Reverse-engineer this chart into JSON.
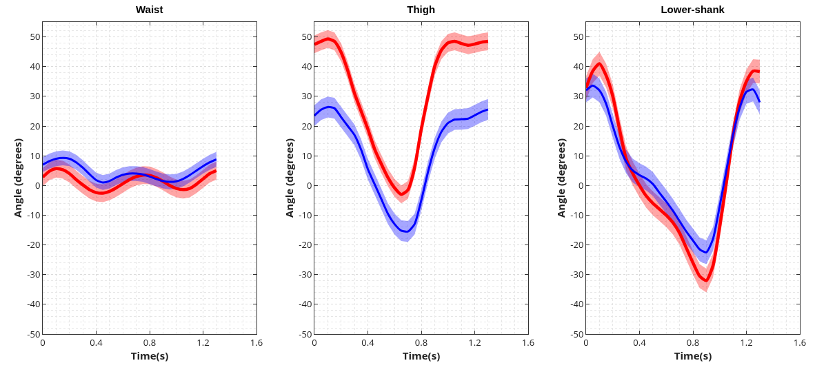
{
  "chart_data": [
    {
      "type": "line",
      "title": "Waist",
      "xlabel": "Time(s)",
      "ylabel": "Angle (degrees)",
      "xlim": [
        0,
        1.6
      ],
      "xticks": [
        0,
        0.4,
        0.8,
        1.2,
        1.6
      ],
      "ylim": [
        -50,
        55
      ],
      "yticks": [
        -50,
        -40,
        -30,
        -20,
        -10,
        0,
        10,
        20,
        30,
        40,
        50
      ],
      "grid": true,
      "x": [
        0,
        0.05,
        0.1,
        0.15,
        0.2,
        0.25,
        0.3,
        0.35,
        0.4,
        0.45,
        0.5,
        0.55,
        0.6,
        0.65,
        0.7,
        0.75,
        0.8,
        0.85,
        0.9,
        0.95,
        1.0,
        1.05,
        1.1,
        1.15,
        1.2,
        1.25,
        1.3
      ],
      "series": [
        {
          "color": "#ff0000",
          "values": [
            2.8,
            4.8,
            5.7,
            5.3,
            4,
            2,
            0.2,
            -1.4,
            -2.4,
            -2.6,
            -2,
            -0.8,
            0.6,
            2,
            3,
            3.5,
            3.4,
            2.6,
            1.4,
            0,
            -1,
            -1.4,
            -1,
            0.4,
            2.2,
            4,
            5
          ],
          "lower": [
            -0.2,
            1.8,
            2.7,
            2.3,
            1,
            -1,
            -2.8,
            -4.4,
            -5.4,
            -5.6,
            -5,
            -3.8,
            -2.4,
            -1,
            0,
            0.5,
            0.4,
            -0.4,
            -1.6,
            -3,
            -4,
            -4.4,
            -4,
            -2.6,
            -0.8,
            1,
            2
          ],
          "upper": [
            5.8,
            7.8,
            8.7,
            8.3,
            7,
            5,
            3.2,
            1.6,
            0.6,
            0.4,
            1,
            2.2,
            3.6,
            5,
            6,
            6.5,
            6.4,
            5.6,
            4.4,
            3,
            2,
            1.6,
            2,
            3.4,
            5.2,
            7,
            8
          ]
        },
        {
          "color": "#0000ff",
          "values": [
            7,
            8.2,
            9,
            9.3,
            9,
            7.8,
            6,
            3.8,
            1.8,
            1,
            1.5,
            2.7,
            3.6,
            4,
            4,
            3.7,
            3,
            2.2,
            1.5,
            1.2,
            1.4,
            2.2,
            3.5,
            5,
            6.5,
            7.8,
            8.8
          ],
          "lower": [
            4.5,
            5.7,
            6.5,
            6.8,
            6.5,
            5.3,
            3.5,
            1.3,
            -0.7,
            -1.5,
            -1,
            0.2,
            1.1,
            1.5,
            1.5,
            1.2,
            0.5,
            -0.3,
            -1,
            -1.3,
            -1.1,
            -0.3,
            1,
            2.5,
            4,
            5.3,
            6.3
          ],
          "upper": [
            9.5,
            10.7,
            11.5,
            11.8,
            11.5,
            10.3,
            8.5,
            6.3,
            4.3,
            3.5,
            4,
            5.2,
            6.1,
            6.5,
            6.5,
            6.2,
            5.5,
            4.7,
            4,
            3.7,
            3.9,
            4.7,
            6,
            7.5,
            9,
            10.3,
            11.3
          ]
        }
      ]
    },
    {
      "type": "line",
      "title": "Thigh",
      "xlabel": "Time(s)",
      "ylabel": "Angle (degrees)",
      "xlim": [
        0,
        1.6
      ],
      "xticks": [
        0,
        0.4,
        0.8,
        1.2,
        1.6
      ],
      "ylim": [
        -50,
        55
      ],
      "yticks": [
        -50,
        -40,
        -30,
        -20,
        -10,
        0,
        10,
        20,
        30,
        40,
        50
      ],
      "grid": true,
      "x": [
        0,
        0.05,
        0.1,
        0.15,
        0.2,
        0.25,
        0.3,
        0.35,
        0.4,
        0.45,
        0.5,
        0.55,
        0.6,
        0.65,
        0.7,
        0.75,
        0.8,
        0.85,
        0.9,
        0.95,
        1.0,
        1.05,
        1.1,
        1.15,
        1.2,
        1.25,
        1.3
      ],
      "series": [
        {
          "color": "#ff0000",
          "values": [
            47.5,
            48.5,
            49.3,
            48.5,
            44.8,
            38.6,
            31,
            25,
            19,
            12.3,
            7.3,
            2.7,
            -0.8,
            -3,
            -1.5,
            6,
            19,
            30,
            40,
            45.5,
            48,
            48.5,
            47.8,
            47.2,
            47.6,
            48.2,
            48.5
          ],
          "lower": [
            44.5,
            45.5,
            46.3,
            45.5,
            41.8,
            35.6,
            28,
            22,
            16,
            9.3,
            4.3,
            -0.3,
            -3.8,
            -6,
            -4.5,
            3,
            16,
            27,
            37,
            42.5,
            45,
            45.5,
            44.8,
            44.2,
            44.6,
            45.2,
            45.5
          ],
          "upper": [
            50.5,
            51.5,
            52.3,
            51.5,
            47.8,
            41.6,
            34,
            28,
            22,
            15.3,
            10.3,
            5.7,
            2.2,
            0,
            1.5,
            9,
            22,
            33,
            43,
            48.5,
            51,
            51.5,
            50.8,
            50.2,
            50.6,
            51.2,
            51.5
          ]
        },
        {
          "color": "#0000ff",
          "values": [
            23.5,
            25.5,
            26.4,
            26,
            23,
            20,
            17,
            12,
            5.5,
            0.5,
            -4.5,
            -9.5,
            -13,
            -15.2,
            -15.5,
            -13,
            -5,
            4.5,
            12.5,
            18,
            21,
            22.2,
            22.3,
            22.5,
            23.6,
            24.8,
            25.6
          ],
          "lower": [
            20,
            22,
            22.9,
            22.5,
            19.5,
            16.5,
            13.5,
            8.5,
            2,
            -3,
            -8,
            -13,
            -16.5,
            -18.7,
            -19,
            -16.5,
            -8.5,
            1,
            9,
            14.5,
            17.5,
            18.7,
            18.8,
            19,
            20.1,
            21.3,
            22.1
          ],
          "upper": [
            27,
            29,
            29.9,
            29.5,
            26.5,
            23.5,
            20.5,
            15.5,
            9,
            4,
            -1,
            -6,
            -9.5,
            -11.7,
            -12,
            -9.5,
            -1.5,
            8,
            16,
            21.5,
            24.5,
            25.7,
            25.8,
            26,
            27.1,
            28.3,
            29.1
          ]
        }
      ]
    },
    {
      "type": "line",
      "title": "Lower-shank",
      "xlabel": "Time(s)",
      "ylabel": "Angle (degrees)",
      "xlim": [
        0,
        1.6
      ],
      "xticks": [
        0,
        0.4,
        0.8,
        1.2,
        1.6
      ],
      "ylim": [
        -50,
        55
      ],
      "yticks": [
        -50,
        -40,
        -30,
        -20,
        -10,
        0,
        10,
        20,
        30,
        40,
        50
      ],
      "grid": true,
      "x": [
        0,
        0.05,
        0.1,
        0.15,
        0.2,
        0.25,
        0.3,
        0.35,
        0.4,
        0.45,
        0.5,
        0.55,
        0.6,
        0.65,
        0.7,
        0.75,
        0.8,
        0.85,
        0.9,
        0.95,
        1.0,
        1.05,
        1.1,
        1.15,
        1.2,
        1.25,
        1.3
      ],
      "series": [
        {
          "color": "#ff0000",
          "values": [
            32.8,
            38.5,
            41,
            37,
            30,
            19,
            9,
            4,
            0,
            -3.5,
            -6,
            -8,
            -10,
            -12.5,
            -16,
            -21,
            -26,
            -30.5,
            -32,
            -27,
            -14,
            1,
            17,
            28.5,
            35,
            38.5,
            38.3
          ],
          "lower": [
            28.8,
            34.5,
            37,
            33,
            26,
            15,
            5,
            0,
            -4,
            -7.5,
            -10,
            -12,
            -14,
            -16.5,
            -20,
            -25,
            -30,
            -34.5,
            -36,
            -31,
            -18,
            -3,
            13,
            24.5,
            31,
            34.5,
            34.3
          ],
          "upper": [
            36.8,
            42.5,
            45,
            41,
            34,
            23,
            13,
            8,
            4,
            0.5,
            -2,
            -4,
            -6,
            -8.5,
            -12,
            -17,
            -22,
            -26.5,
            -28,
            -23,
            -10,
            5,
            21,
            32.5,
            39,
            42.5,
            42.3
          ]
        },
        {
          "color": "#0000ff",
          "values": [
            32,
            33.6,
            32,
            27.5,
            20,
            13,
            8,
            5,
            3.5,
            2.3,
            0.5,
            -2.5,
            -5.4,
            -8.5,
            -12,
            -15.5,
            -18.5,
            -21.5,
            -22.5,
            -18,
            -7,
            5,
            17,
            26.2,
            31.5,
            32.3,
            28
          ],
          "lower": [
            28,
            29.6,
            28,
            23.5,
            16,
            9,
            4,
            1,
            -0.5,
            -1.7,
            -3.5,
            -6.5,
            -9.4,
            -12.5,
            -16,
            -19.5,
            -22.5,
            -25.5,
            -26.5,
            -22,
            -11,
            1,
            13,
            22.2,
            27.5,
            28.3,
            24
          ],
          "upper": [
            36,
            37.6,
            36,
            31.5,
            24,
            17,
            12,
            9,
            7.5,
            6.3,
            4.5,
            1.5,
            -1.4,
            -4.5,
            -8,
            -11.5,
            -14.5,
            -17.5,
            -18.5,
            -14,
            -3,
            9,
            21,
            30.2,
            35.5,
            36.3,
            32
          ]
        }
      ]
    }
  ]
}
